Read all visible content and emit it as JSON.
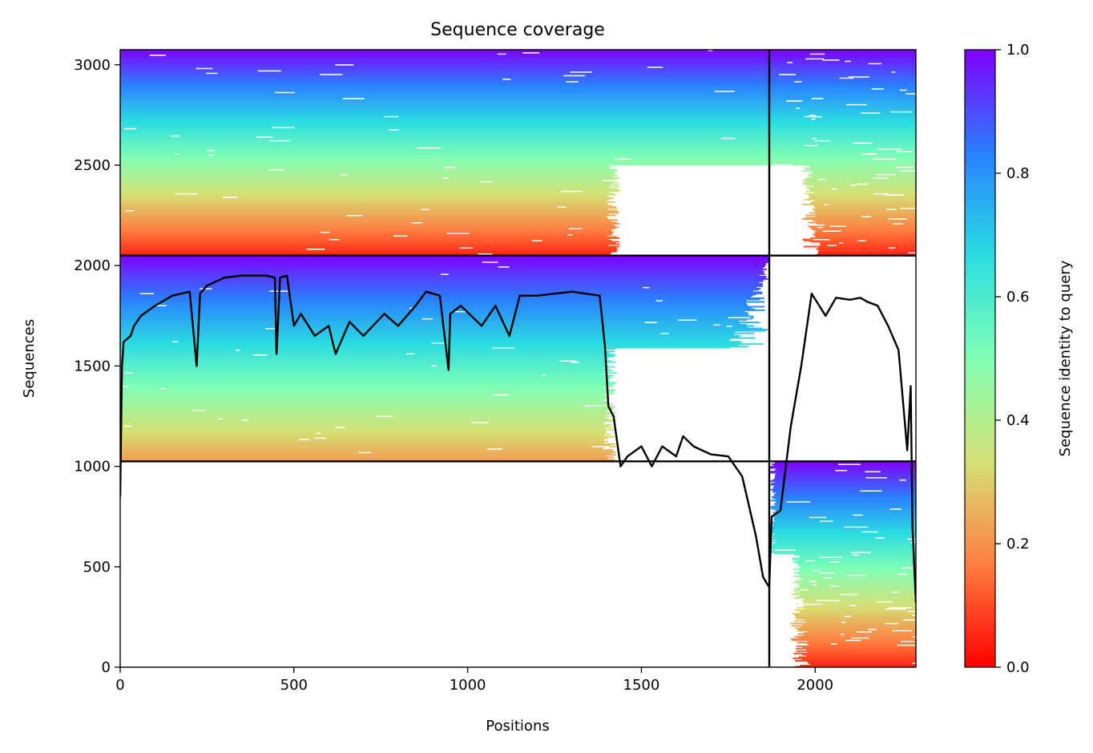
{
  "chart_data": {
    "type": "heatmap",
    "title": "Sequence coverage",
    "xlabel": "Positions",
    "ylabel": "Sequences",
    "xlim": [
      0,
      2290
    ],
    "ylim": [
      0,
      3075
    ],
    "x_ticks": [
      0,
      500,
      1000,
      1500,
      2000
    ],
    "y_ticks": [
      0,
      500,
      1000,
      1500,
      2000,
      2500,
      3000
    ],
    "chain_boundary_positions": [
      1868
    ],
    "sequence_block_boundaries": [
      1025,
      2050
    ],
    "colorbar": {
      "label": "Sequence identity to query",
      "colormap": "rainbow_r",
      "range": [
        0.0,
        1.0
      ],
      "ticks": [
        0.0,
        0.2,
        0.4,
        0.6,
        0.8,
        1.0
      ],
      "colors": [
        "#ff0000",
        "#ff7f40",
        "#d4e176",
        "#80ffb4",
        "#2adce1",
        "#2a80fe",
        "#8000ff"
      ]
    },
    "blocks": [
      {
        "x": [
          0,
          1868
        ],
        "y": [
          2050,
          3075
        ],
        "identity_top": 1.0,
        "identity_bottom": 0.05,
        "coverage_end": 1420,
        "fill_full_above": 2500
      },
      {
        "x": [
          1868,
          2290
        ],
        "y": [
          2050,
          3075
        ],
        "identity_top": 1.0,
        "identity_bottom": 0.05,
        "coverage_start": 1960,
        "fill_full_above": 2500
      },
      {
        "x": [
          0,
          1868
        ],
        "y": [
          1025,
          2050
        ],
        "identity_top": 1.0,
        "identity_bottom": 0.22,
        "coverage_end": 1410
      },
      {
        "x": [
          1868,
          2290
        ],
        "y": [
          0,
          1025
        ],
        "identity_top": 1.0,
        "identity_bottom": 0.05,
        "coverage_start": 1930
      }
    ],
    "coverage_line": {
      "name": "Coverage",
      "color": "#000000",
      "x": [
        0,
        5,
        10,
        30,
        40,
        60,
        100,
        150,
        200,
        220,
        230,
        250,
        300,
        350,
        400,
        420,
        445,
        450,
        460,
        480,
        500,
        520,
        560,
        600,
        620,
        660,
        700,
        760,
        800,
        850,
        880,
        920,
        945,
        950,
        980,
        1040,
        1080,
        1120,
        1150,
        1200,
        1250,
        1300,
        1380,
        1395,
        1405,
        1420,
        1440,
        1460,
        1500,
        1530,
        1560,
        1600,
        1620,
        1650,
        1700,
        1750,
        1790,
        1810,
        1830,
        1850,
        1860,
        1868,
        1875,
        1900,
        1930,
        1960,
        1990,
        2030,
        2060,
        2100,
        2130,
        2150,
        2180,
        2210,
        2240,
        2265,
        2275,
        2280,
        2290
      ],
      "y": [
        850,
        1500,
        1620,
        1650,
        1700,
        1750,
        1800,
        1850,
        1870,
        1500,
        1860,
        1900,
        1940,
        1950,
        1950,
        1950,
        1940,
        1560,
        1940,
        1950,
        1700,
        1760,
        1650,
        1700,
        1560,
        1720,
        1650,
        1760,
        1700,
        1800,
        1870,
        1850,
        1480,
        1760,
        1800,
        1700,
        1800,
        1650,
        1850,
        1850,
        1860,
        1870,
        1850,
        1600,
        1300,
        1250,
        1000,
        1050,
        1100,
        1000,
        1100,
        1050,
        1150,
        1100,
        1060,
        1050,
        950,
        800,
        650,
        450,
        420,
        400,
        750,
        780,
        1200,
        1500,
        1860,
        1750,
        1840,
        1830,
        1840,
        1820,
        1800,
        1700,
        1580,
        1080,
        1400,
        700,
        320
      ]
    }
  }
}
